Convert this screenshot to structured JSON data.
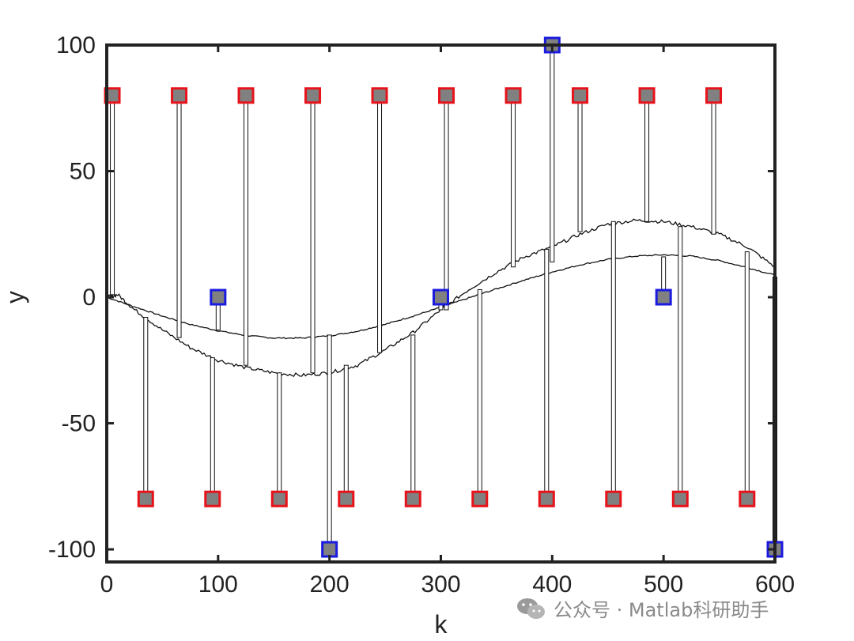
{
  "chart_data": {
    "type": "line",
    "xlabel": "k",
    "ylabel": "y",
    "xlim": [
      0,
      600
    ],
    "ylim": [
      -105,
      100
    ],
    "x_ticks": [
      0,
      100,
      200,
      300,
      400,
      500,
      600
    ],
    "y_ticks": [
      -100,
      -50,
      0,
      50,
      100
    ],
    "x_tick_labels": [
      "0",
      "100",
      "200",
      "300",
      "400",
      "500",
      "600"
    ],
    "y_tick_labels": [
      "-100",
      "-50",
      "0",
      "50",
      "100"
    ],
    "grid": false,
    "legend": "none",
    "colors": {
      "axis": "#222222",
      "line": "#111111",
      "marker_fill": "#808080",
      "red_edge": "#e8121a",
      "blue_edge": "#1a1ae0"
    },
    "series": [
      {
        "x": [
          0,
          25,
          50,
          75,
          100,
          125,
          150,
          175,
          200,
          225,
          250,
          275,
          300,
          325,
          350,
          375,
          400,
          425,
          450,
          475,
          500,
          525,
          550,
          575,
          600
        ],
        "y": [
          0,
          -3.8,
          -7.5,
          -10.8,
          -13.3,
          -15.2,
          -16.2,
          -16.2,
          -15.3,
          -13.5,
          -10.8,
          -7.5,
          -4,
          -0.3,
          3.3,
          6.8,
          10,
          12.8,
          15,
          16.3,
          16.8,
          16.3,
          14.5,
          11.8,
          8.7
        ]
      },
      {
        "x": [
          0,
          10,
          25,
          50,
          75,
          100,
          125,
          150,
          175,
          200,
          225,
          250,
          275,
          300,
          325,
          350,
          375,
          400,
          425,
          450,
          475,
          500,
          525,
          550,
          575,
          600
        ],
        "y": [
          0,
          1,
          -5,
          -13,
          -20,
          -25,
          -28,
          -30,
          -31,
          -30,
          -27,
          -21,
          -14,
          -5,
          3,
          10,
          16,
          20,
          25,
          29,
          30.5,
          30,
          28,
          25,
          20,
          12
        ]
      }
    ],
    "stems": [
      {
        "x": 5,
        "y": 80,
        "y_from": 1,
        "edge": "red"
      },
      {
        "x": 35,
        "y": -80,
        "y_from": -8,
        "edge": "red"
      },
      {
        "x": 65,
        "y": 80,
        "y_from": -16,
        "edge": "red"
      },
      {
        "x": 95,
        "y": -80,
        "y_from": -24,
        "edge": "red"
      },
      {
        "x": 100,
        "y": 0,
        "y_from": -13,
        "edge": "blue"
      },
      {
        "x": 125,
        "y": 80,
        "y_from": -27,
        "edge": "red"
      },
      {
        "x": 155,
        "y": -80,
        "y_from": -30,
        "edge": "red"
      },
      {
        "x": 185,
        "y": 80,
        "y_from": -30,
        "edge": "red"
      },
      {
        "x": 200,
        "y": -100,
        "y_from": -15,
        "edge": "blue"
      },
      {
        "x": 215,
        "y": -80,
        "y_from": -27,
        "edge": "red"
      },
      {
        "x": 245,
        "y": 80,
        "y_from": -22,
        "edge": "red"
      },
      {
        "x": 275,
        "y": -80,
        "y_from": -15,
        "edge": "red"
      },
      {
        "x": 300,
        "y": 0,
        "y_from": -5,
        "edge": "blue"
      },
      {
        "x": 305,
        "y": 80,
        "y_from": -5,
        "edge": "red"
      },
      {
        "x": 335,
        "y": -80,
        "y_from": 3,
        "edge": "red"
      },
      {
        "x": 365,
        "y": 80,
        "y_from": 12,
        "edge": "red"
      },
      {
        "x": 395,
        "y": -80,
        "y_from": 19,
        "edge": "red"
      },
      {
        "x": 400,
        "y": 100,
        "y_from": 14,
        "edge": "blue"
      },
      {
        "x": 425,
        "y": 80,
        "y_from": 26,
        "edge": "red"
      },
      {
        "x": 455,
        "y": -80,
        "y_from": 30,
        "edge": "red"
      },
      {
        "x": 485,
        "y": 80,
        "y_from": 30,
        "edge": "red"
      },
      {
        "x": 500,
        "y": 0,
        "y_from": 16,
        "edge": "blue"
      },
      {
        "x": 515,
        "y": -80,
        "y_from": 28,
        "edge": "red"
      },
      {
        "x": 545,
        "y": 80,
        "y_from": 25,
        "edge": "red"
      },
      {
        "x": 575,
        "y": -80,
        "y_from": 18,
        "edge": "red"
      },
      {
        "x": 600,
        "y": -100,
        "y_from": 8,
        "edge": "blue"
      }
    ]
  },
  "watermark": {
    "icon": "wechat-icon",
    "text": "公众号 · Matlab科研助手"
  }
}
